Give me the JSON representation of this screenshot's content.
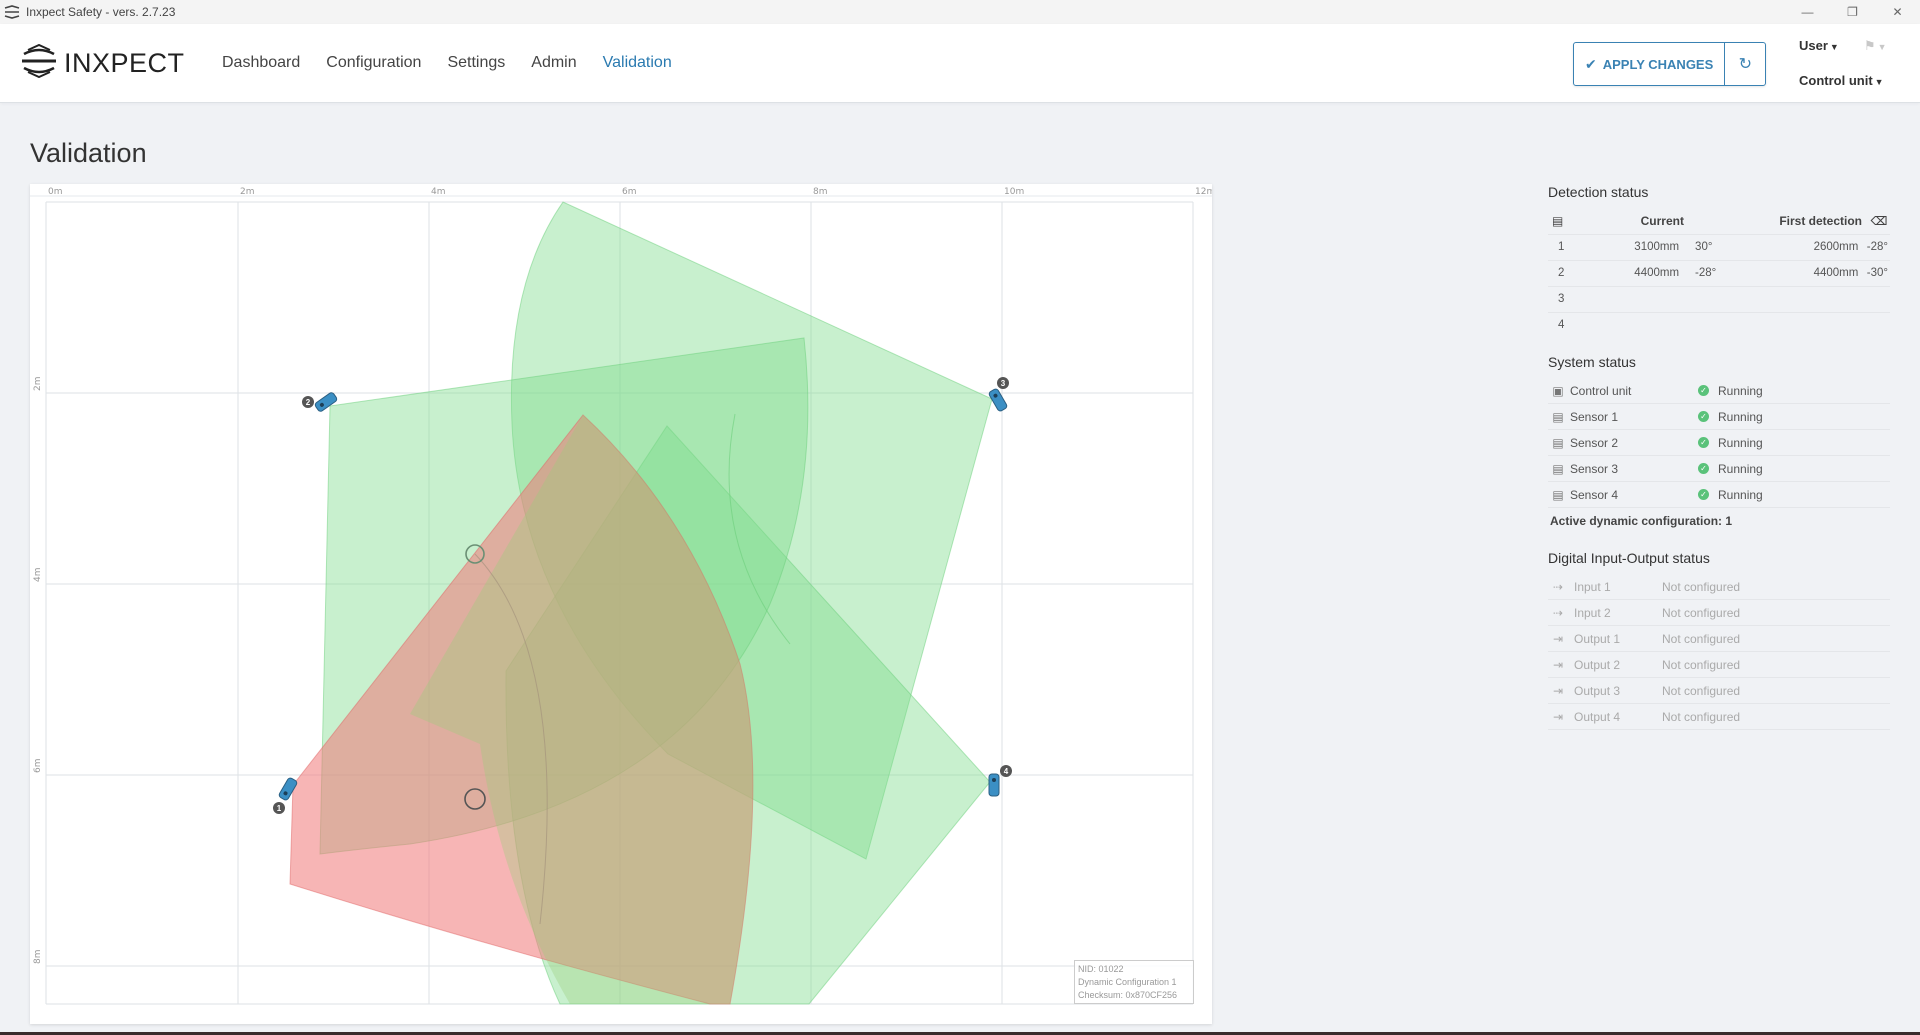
{
  "window": {
    "title": "Inxpect Safety - vers. 2.7.23",
    "controls": [
      "minimize-icon",
      "restore-icon",
      "close-icon"
    ]
  },
  "header": {
    "logo_text": "INXPECT",
    "nav": [
      {
        "label": "Dashboard",
        "active": false
      },
      {
        "label": "Configuration",
        "active": false
      },
      {
        "label": "Settings",
        "active": false
      },
      {
        "label": "Admin",
        "active": false
      },
      {
        "label": "Validation",
        "active": true
      }
    ],
    "apply_label": "APPLY CHANGES",
    "user_label": "User",
    "control_unit_label": "Control unit",
    "accent_color": "#2a7ab0"
  },
  "page": {
    "title": "Validation"
  },
  "map": {
    "x_ticks": [
      "0m",
      "2m",
      "4m",
      "6m",
      "8m",
      "10m",
      "12m"
    ],
    "y_ticks": [
      "2m",
      "4m",
      "6m",
      "8m"
    ],
    "sensors": [
      {
        "id": "1",
        "label": "1"
      },
      {
        "id": "2",
        "label": "2"
      },
      {
        "id": "3",
        "label": "3"
      },
      {
        "id": "4",
        "label": "4"
      }
    ],
    "nid_lines": [
      "NID: 01022",
      "Dynamic Configuration 1",
      "Checksum: 0x870CF256"
    ],
    "colors": {
      "field": "#7ddc8a",
      "alarm": "#f07878",
      "sensor": "#3b8fc4"
    }
  },
  "detection": {
    "title": "Detection status",
    "headers": {
      "current": "Current",
      "first": "First detection"
    },
    "rows": [
      {
        "id": "1",
        "cur_dist": "3100mm",
        "cur_angle": "30°",
        "first_dist": "2600mm",
        "first_angle": "-28°"
      },
      {
        "id": "2",
        "cur_dist": "4400mm",
        "cur_angle": "-28°",
        "first_dist": "4400mm",
        "first_angle": "-30°"
      },
      {
        "id": "3",
        "cur_dist": "",
        "cur_angle": "",
        "first_dist": "",
        "first_angle": ""
      },
      {
        "id": "4",
        "cur_dist": "",
        "cur_angle": "",
        "first_dist": "",
        "first_angle": ""
      }
    ]
  },
  "system": {
    "title": "System status",
    "rows": [
      {
        "name": "Control unit",
        "status": "Running",
        "icon": "chip-icon"
      },
      {
        "name": "Sensor 1",
        "status": "Running",
        "icon": "sensor-icon"
      },
      {
        "name": "Sensor 2",
        "status": "Running",
        "icon": "sensor-icon"
      },
      {
        "name": "Sensor 3",
        "status": "Running",
        "icon": "sensor-icon"
      },
      {
        "name": "Sensor 4",
        "status": "Running",
        "icon": "sensor-icon"
      }
    ],
    "active_config": "Active dynamic configuration: 1"
  },
  "io": {
    "title": "Digital Input-Output status",
    "rows": [
      {
        "name": "Input 1",
        "status": "Not configured",
        "kind": "input"
      },
      {
        "name": "Input 2",
        "status": "Not configured",
        "kind": "input"
      },
      {
        "name": "Output 1",
        "status": "Not configured",
        "kind": "output"
      },
      {
        "name": "Output 2",
        "status": "Not configured",
        "kind": "output"
      },
      {
        "name": "Output 3",
        "status": "Not configured",
        "kind": "output"
      },
      {
        "name": "Output 4",
        "status": "Not configured",
        "kind": "output"
      }
    ]
  }
}
